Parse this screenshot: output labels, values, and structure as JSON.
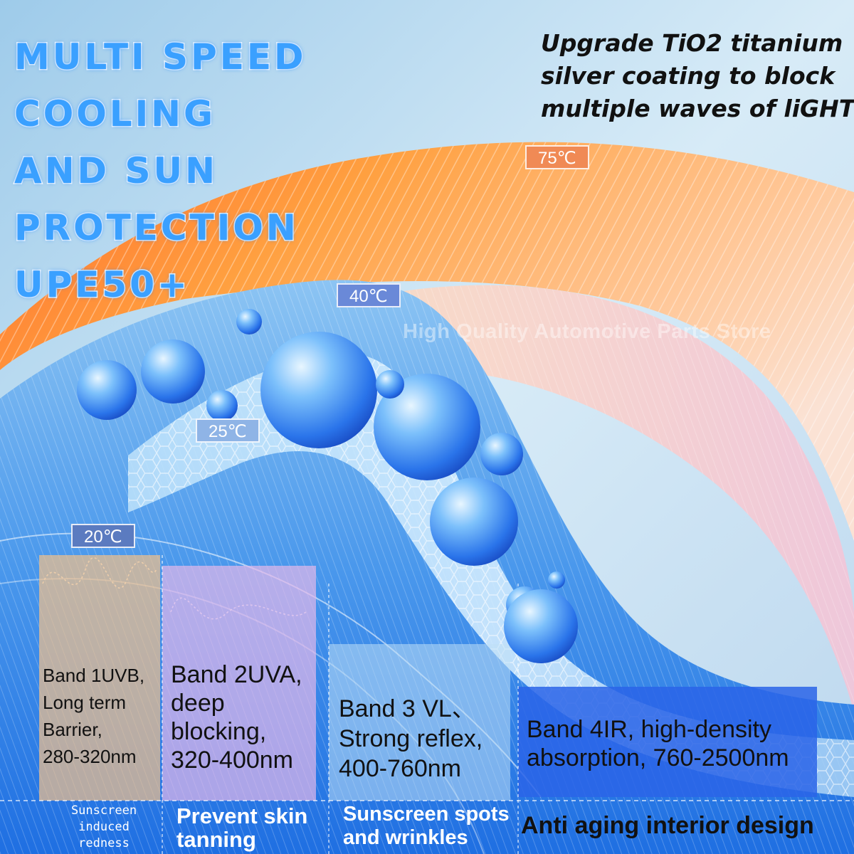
{
  "headline": {
    "lines": [
      "MULTI SPEED COOLING",
      "AND SUN PROTECTION",
      "UPE50+"
    ]
  },
  "promo": {
    "lines": [
      "Upgrade TiO2 titanium",
      "silver coating to block",
      "multiple waves of liGHT"
    ]
  },
  "temperatures": {
    "t75": "75℃",
    "t40": "40℃",
    "t25": "25℃",
    "t20": "20℃"
  },
  "watermark": "High Quality Automotive Parts Store",
  "bands": [
    {
      "lines": [
        "Band 1UVB,",
        "Long term",
        "Barrier,",
        "280-320nm"
      ]
    },
    {
      "lines": [
        "Band 2UVA,",
        "deep",
        "blocking,",
        "320-400nm"
      ]
    },
    {
      "lines": [
        "Band 3 VL、",
        "Strong reflex,",
        "400-760nm"
      ]
    },
    {
      "lines": [
        "Band 4IR, high-density",
        "absorption, 760-2500nm"
      ]
    }
  ],
  "captions": [
    {
      "lines": [
        "Sunscreen",
        "induced",
        "redness"
      ]
    },
    {
      "lines": [
        "Prevent skin",
        "tanning"
      ]
    },
    {
      "lines": [
        "Sunscreen spots",
        "and wrinkles"
      ]
    },
    {
      "lines": [
        "Anti aging interior design"
      ]
    }
  ],
  "colors": {
    "headline": "#3aa0ff",
    "hot_layer": "#ff8a2a",
    "cool_layer": "#2f7fe8",
    "band1": "#f3c189",
    "band2": "#e4b8ea",
    "band3": "#bfe0f6",
    "band4": "#2a64e8"
  }
}
